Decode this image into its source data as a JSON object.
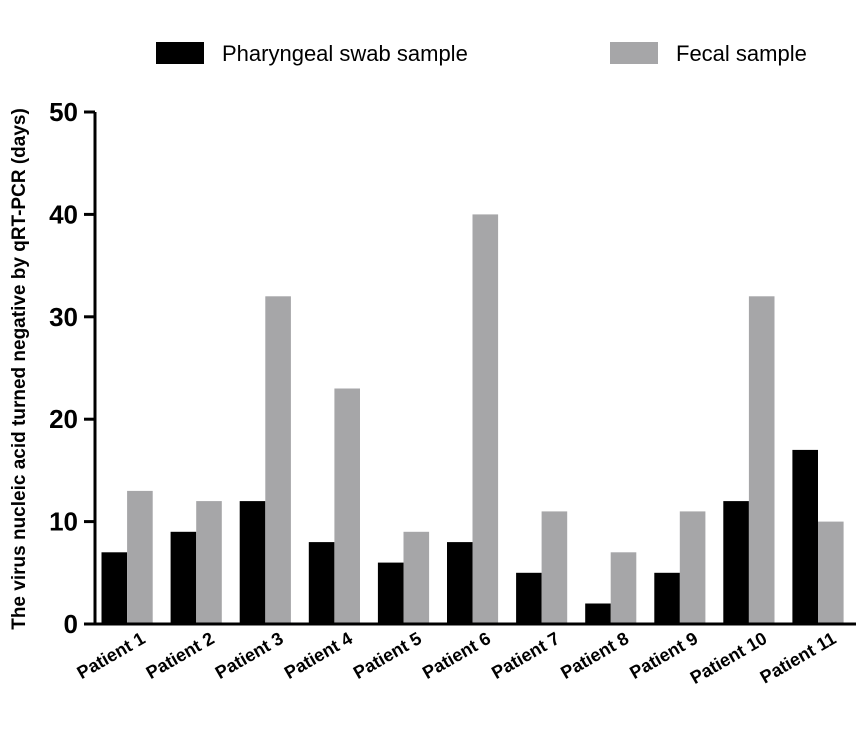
{
  "chart_data": {
    "type": "bar",
    "title": "",
    "xlabel": "",
    "ylabel": "The virus nucleic acid turned negative by qRT-PCR (days)",
    "ylim": [
      0,
      50
    ],
    "yticks": [
      "0",
      "10",
      "20",
      "30",
      "40",
      "50"
    ],
    "categories": [
      "Patient 1",
      "Patient 2",
      "Patient 3",
      "Patient 4",
      "Patient 5",
      "Patient 6",
      "Patient 7",
      "Patient 8",
      "Patient 9",
      "Patient 10",
      "Patient 11"
    ],
    "series": [
      {
        "name": "Pharyngeal swab sample",
        "color": "#000000",
        "values": [
          7,
          9,
          12,
          8,
          6,
          8,
          5,
          2,
          5,
          12,
          17
        ]
      },
      {
        "name": "Fecal sample",
        "color": "#a6a6a8",
        "values": [
          13,
          12,
          32,
          23,
          9,
          40,
          11,
          7,
          11,
          32,
          10
        ]
      }
    ],
    "legend_position": "top",
    "grid": false
  }
}
